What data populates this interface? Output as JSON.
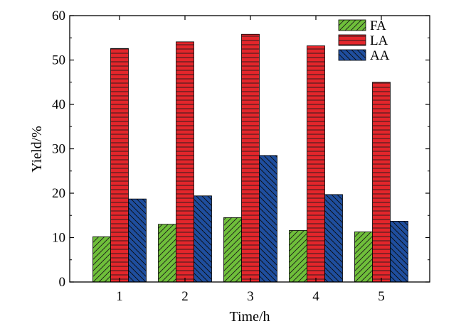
{
  "chart_data": {
    "type": "bar",
    "categories": [
      "1",
      "2",
      "3",
      "4",
      "5"
    ],
    "series": [
      {
        "name": "FA",
        "values": [
          10.2,
          13.0,
          14.5,
          11.6,
          11.3
        ],
        "color": "#6fbf3a",
        "pattern": "diagonal-up"
      },
      {
        "name": "LA",
        "values": [
          52.6,
          54.1,
          55.8,
          53.2,
          45.0
        ],
        "color": "#e3262b",
        "pattern": "horizontal"
      },
      {
        "name": "AA",
        "values": [
          18.7,
          19.4,
          28.5,
          19.7,
          13.7
        ],
        "color": "#1f4e9e",
        "pattern": "diagonal-down"
      }
    ],
    "xlabel": "Time/h",
    "ylabel": "Yield/%",
    "ylim": [
      0,
      60
    ],
    "yticks": [
      "0",
      "10",
      "20",
      "30",
      "40",
      "50",
      "60"
    ],
    "grid": false,
    "legend_position": "top-right"
  }
}
